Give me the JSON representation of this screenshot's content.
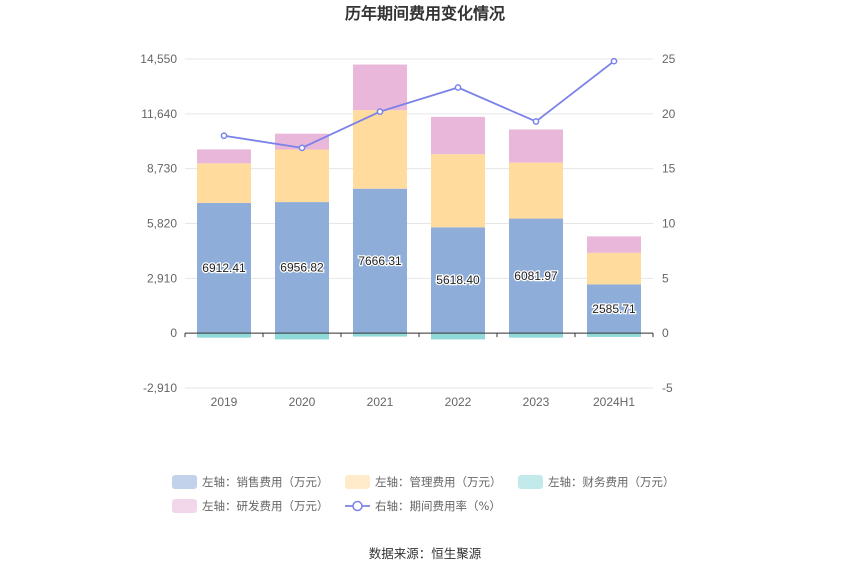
{
  "chart_data": {
    "type": "bar",
    "title": "历年期间费用变化情况",
    "categories": [
      "2019",
      "2020",
      "2021",
      "2022",
      "2023",
      "2024H1"
    ],
    "stacked": true,
    "left_axis": {
      "min": -2910,
      "max": 14550,
      "ticks": [
        "-2,910",
        "0",
        "2,910",
        "5,820",
        "8,730",
        "11,640",
        "14,550"
      ]
    },
    "right_axis": {
      "min": -5,
      "max": 25,
      "ticks": [
        "-5",
        "0",
        "5",
        "10",
        "15",
        "20",
        "25"
      ]
    },
    "series": [
      {
        "name": "左轴：销售费用（万元）",
        "axis": "left",
        "color": "#8eadd9",
        "values": [
          6912.41,
          6956.82,
          7666.31,
          5618.4,
          6081.97,
          2585.71
        ],
        "labels": [
          "6912.41",
          "6956.82",
          "7666.31",
          "5618.40",
          "6081.97",
          "2585.71"
        ]
      },
      {
        "name": "左轴：管理费用（万元）",
        "axis": "left",
        "color": "#ffdb9e",
        "values": [
          2100,
          2790,
          4170,
          3880,
          2970,
          1680
        ]
      },
      {
        "name": "左轴：财务费用（万元）",
        "axis": "left",
        "color": "#8fd9d9",
        "values": [
          -240,
          -330,
          -180,
          -330,
          -240,
          -200
        ]
      },
      {
        "name": "左轴：研发费用（万元）",
        "axis": "left",
        "color": "#e8b7d9",
        "values": [
          740,
          840,
          2420,
          1980,
          1760,
          870
        ]
      },
      {
        "name": "右轴：期间费用率（%）",
        "axis": "right",
        "type": "line",
        "color": "#7b82e8",
        "values": [
          18.0,
          16.9,
          20.2,
          22.4,
          19.3,
          24.8
        ]
      }
    ],
    "legend_position": "bottom",
    "grid": true
  },
  "source_text": "数据来源：恒生聚源"
}
